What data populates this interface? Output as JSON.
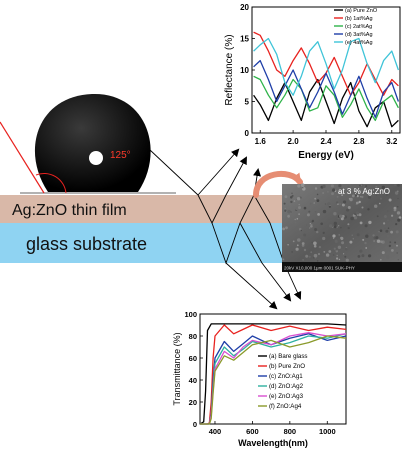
{
  "labels": {
    "film": "Ag:ZnO thin film",
    "substrate": "glass substrate",
    "angle": "125°",
    "sem_caption": "at 3 % Ag:ZnO",
    "sem_scale": "20kV  X10,000   1μm  0001  SUK-PHY"
  },
  "colors": {
    "film": "#d9b8a8",
    "substrate": "#8fd3f2",
    "arrow": "#e68d73"
  },
  "chart_data": [
    {
      "type": "line",
      "xlabel": "Energy (eV)",
      "ylabel": "Reflectance (%)",
      "xlim": [
        1.5,
        3.3
      ],
      "ylim": [
        0,
        20
      ],
      "xticks": [
        1.6,
        2.0,
        2.4,
        2.8,
        3.2
      ],
      "yticks": [
        0,
        5,
        10,
        15,
        20
      ],
      "grid": false,
      "legend": "top-right",
      "series": [
        {
          "name": "(a) Pure ZnO",
          "color": "#000000",
          "x": [
            1.52,
            1.6,
            1.7,
            1.8,
            1.9,
            2.0,
            2.1,
            2.2,
            2.3,
            2.4,
            2.5,
            2.6,
            2.7,
            2.8,
            2.9,
            3.0,
            3.1,
            3.2,
            3.28
          ],
          "y": [
            6.0,
            4.5,
            2.0,
            5.5,
            8.0,
            5.0,
            2.0,
            6.5,
            8.5,
            5.0,
            1.5,
            5.5,
            8.0,
            3.5,
            1.0,
            4.0,
            5.0,
            1.0,
            2.0
          ]
        },
        {
          "name": "(b) 1at%Ag",
          "color": "#e8221f",
          "x": [
            1.52,
            1.6,
            1.7,
            1.8,
            1.9,
            2.0,
            2.1,
            2.2,
            2.3,
            2.4,
            2.5,
            2.6,
            2.7,
            2.8,
            2.9,
            3.0,
            3.1,
            3.2,
            3.28
          ],
          "y": [
            16.0,
            15.5,
            13.0,
            10.0,
            9.0,
            11.5,
            13.5,
            11.0,
            8.0,
            9.5,
            12.0,
            9.0,
            6.0,
            8.0,
            11.0,
            8.5,
            6.0,
            8.5,
            7.5
          ]
        },
        {
          "name": "(c) 2at%Ag",
          "color": "#2fb34a",
          "x": [
            1.52,
            1.6,
            1.7,
            1.8,
            1.9,
            2.0,
            2.1,
            2.2,
            2.3,
            2.4,
            2.5,
            2.6,
            2.7,
            2.8,
            2.9,
            3.0,
            3.1,
            3.2,
            3.28
          ],
          "y": [
            9.0,
            8.5,
            6.0,
            4.0,
            6.0,
            8.5,
            7.0,
            3.5,
            4.0,
            7.5,
            6.0,
            2.5,
            4.5,
            7.0,
            4.0,
            2.0,
            5.0,
            6.0,
            4.0
          ]
        },
        {
          "name": "(d) 3at%Ag",
          "color": "#1f3fa8",
          "x": [
            1.52,
            1.6,
            1.7,
            1.8,
            1.9,
            2.0,
            2.1,
            2.2,
            2.3,
            2.4,
            2.5,
            2.6,
            2.7,
            2.8,
            2.9,
            3.0,
            3.1,
            3.2,
            3.28
          ],
          "y": [
            10.5,
            11.5,
            8.5,
            5.0,
            7.5,
            10.0,
            7.0,
            4.0,
            6.5,
            9.5,
            6.5,
            3.0,
            6.0,
            9.0,
            5.5,
            2.5,
            6.5,
            8.0,
            5.0
          ]
        },
        {
          "name": "(e) 4at%Ag",
          "color": "#3fc4d8",
          "x": [
            1.52,
            1.6,
            1.7,
            1.8,
            1.9,
            2.0,
            2.1,
            2.2,
            2.3,
            2.4,
            2.5,
            2.6,
            2.7,
            2.8,
            2.9,
            3.0,
            3.1,
            3.2,
            3.28
          ],
          "y": [
            13.0,
            14.0,
            15.0,
            12.5,
            8.0,
            6.0,
            9.0,
            13.0,
            14.5,
            11.0,
            7.0,
            10.0,
            14.5,
            15.0,
            11.0,
            8.0,
            11.5,
            13.0,
            10.0
          ]
        }
      ]
    },
    {
      "type": "line",
      "xlabel": "Wavelength(nm)",
      "ylabel": "Transmittance (%)",
      "xlim": [
        320,
        1100
      ],
      "ylim": [
        0,
        100
      ],
      "xticks": [
        400,
        600,
        800,
        1000
      ],
      "yticks": [
        0,
        20,
        40,
        60,
        80,
        100
      ],
      "grid": false,
      "legend": "right",
      "series": [
        {
          "name": "(a) Bare glass",
          "color": "#000000",
          "x": [
            320,
            340,
            350,
            360,
            380,
            400,
            450,
            500,
            600,
            700,
            800,
            900,
            1000,
            1100
          ],
          "y": [
            0,
            2,
            30,
            85,
            91,
            91,
            91,
            91,
            91,
            91,
            91,
            91,
            91,
            90
          ]
        },
        {
          "name": "(b) Pure ZnO",
          "color": "#e8221f",
          "x": [
            320,
            360,
            370,
            380,
            390,
            400,
            450,
            500,
            550,
            600,
            700,
            800,
            900,
            1000,
            1100
          ],
          "y": [
            0,
            0,
            1,
            20,
            60,
            80,
            90,
            82,
            86,
            90,
            85,
            89,
            85,
            88,
            86
          ]
        },
        {
          "name": "(c) ZnO:Ag1",
          "color": "#1f3fa8",
          "x": [
            320,
            370,
            380,
            390,
            400,
            450,
            500,
            550,
            600,
            700,
            800,
            900,
            1000,
            1100
          ],
          "y": [
            0,
            0,
            10,
            40,
            60,
            75,
            66,
            73,
            80,
            72,
            78,
            82,
            76,
            80
          ]
        },
        {
          "name": "(d) ZnO:Ag2",
          "color": "#2fb0a0",
          "x": [
            320,
            370,
            380,
            390,
            400,
            450,
            500,
            550,
            600,
            700,
            800,
            900,
            1000,
            1100
          ],
          "y": [
            0,
            0,
            8,
            35,
            55,
            70,
            62,
            68,
            75,
            70,
            74,
            80,
            78,
            82
          ]
        },
        {
          "name": "(e) ZnO:Ag3",
          "color": "#d94fd0",
          "x": [
            320,
            370,
            380,
            390,
            400,
            450,
            500,
            550,
            600,
            700,
            800,
            900,
            1000,
            1100
          ],
          "y": [
            0,
            0,
            8,
            30,
            50,
            66,
            60,
            70,
            76,
            72,
            80,
            83,
            80,
            82
          ]
        },
        {
          "name": "(f) ZnO:Ag4",
          "color": "#8a9a2a",
          "x": [
            320,
            370,
            380,
            390,
            400,
            450,
            500,
            550,
            600,
            700,
            800,
            900,
            1000,
            1100
          ],
          "y": [
            0,
            0,
            5,
            28,
            48,
            62,
            58,
            65,
            72,
            76,
            70,
            74,
            80,
            78
          ]
        }
      ]
    }
  ]
}
